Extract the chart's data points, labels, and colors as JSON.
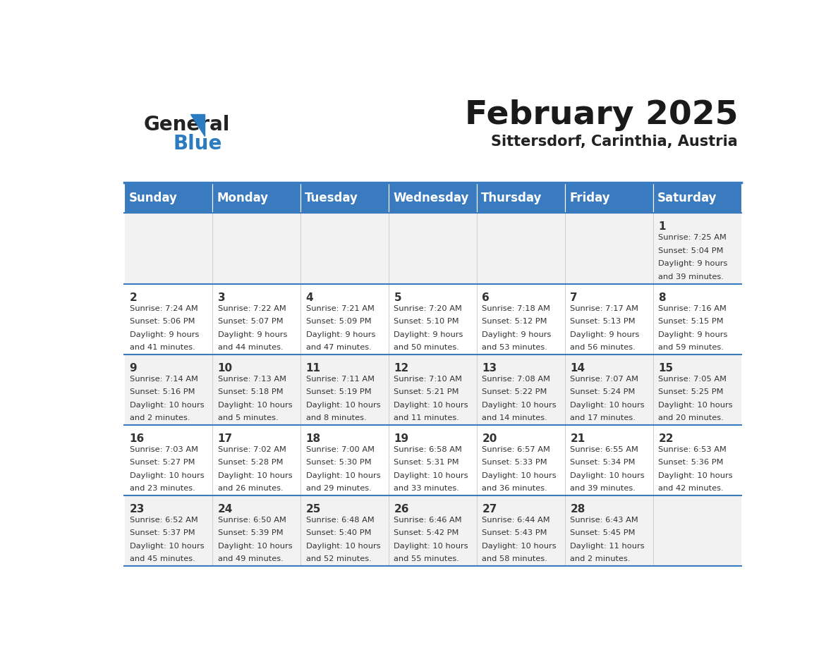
{
  "title": "February 2025",
  "subtitle": "Sittersdorf, Carinthia, Austria",
  "header_bg": "#3a7bbf",
  "header_text": "#ffffff",
  "header_days": [
    "Sunday",
    "Monday",
    "Tuesday",
    "Wednesday",
    "Thursday",
    "Friday",
    "Saturday"
  ],
  "row_bg_odd": "#f2f2f2",
  "row_bg_even": "#ffffff",
  "border_color": "#3a7bbf",
  "day_number_color": "#333333",
  "cell_text_color": "#333333",
  "days_data": [
    {
      "day": 1,
      "col": 6,
      "row": 0,
      "sunrise": "7:25 AM",
      "sunset": "5:04 PM",
      "daylight": "9 hours and 39 minutes"
    },
    {
      "day": 2,
      "col": 0,
      "row": 1,
      "sunrise": "7:24 AM",
      "sunset": "5:06 PM",
      "daylight": "9 hours and 41 minutes"
    },
    {
      "day": 3,
      "col": 1,
      "row": 1,
      "sunrise": "7:22 AM",
      "sunset": "5:07 PM",
      "daylight": "9 hours and 44 minutes"
    },
    {
      "day": 4,
      "col": 2,
      "row": 1,
      "sunrise": "7:21 AM",
      "sunset": "5:09 PM",
      "daylight": "9 hours and 47 minutes"
    },
    {
      "day": 5,
      "col": 3,
      "row": 1,
      "sunrise": "7:20 AM",
      "sunset": "5:10 PM",
      "daylight": "9 hours and 50 minutes"
    },
    {
      "day": 6,
      "col": 4,
      "row": 1,
      "sunrise": "7:18 AM",
      "sunset": "5:12 PM",
      "daylight": "9 hours and 53 minutes"
    },
    {
      "day": 7,
      "col": 5,
      "row": 1,
      "sunrise": "7:17 AM",
      "sunset": "5:13 PM",
      "daylight": "9 hours and 56 minutes"
    },
    {
      "day": 8,
      "col": 6,
      "row": 1,
      "sunrise": "7:16 AM",
      "sunset": "5:15 PM",
      "daylight": "9 hours and 59 minutes"
    },
    {
      "day": 9,
      "col": 0,
      "row": 2,
      "sunrise": "7:14 AM",
      "sunset": "5:16 PM",
      "daylight": "10 hours and 2 minutes"
    },
    {
      "day": 10,
      "col": 1,
      "row": 2,
      "sunrise": "7:13 AM",
      "sunset": "5:18 PM",
      "daylight": "10 hours and 5 minutes"
    },
    {
      "day": 11,
      "col": 2,
      "row": 2,
      "sunrise": "7:11 AM",
      "sunset": "5:19 PM",
      "daylight": "10 hours and 8 minutes"
    },
    {
      "day": 12,
      "col": 3,
      "row": 2,
      "sunrise": "7:10 AM",
      "sunset": "5:21 PM",
      "daylight": "10 hours and 11 minutes"
    },
    {
      "day": 13,
      "col": 4,
      "row": 2,
      "sunrise": "7:08 AM",
      "sunset": "5:22 PM",
      "daylight": "10 hours and 14 minutes"
    },
    {
      "day": 14,
      "col": 5,
      "row": 2,
      "sunrise": "7:07 AM",
      "sunset": "5:24 PM",
      "daylight": "10 hours and 17 minutes"
    },
    {
      "day": 15,
      "col": 6,
      "row": 2,
      "sunrise": "7:05 AM",
      "sunset": "5:25 PM",
      "daylight": "10 hours and 20 minutes"
    },
    {
      "day": 16,
      "col": 0,
      "row": 3,
      "sunrise": "7:03 AM",
      "sunset": "5:27 PM",
      "daylight": "10 hours and 23 minutes"
    },
    {
      "day": 17,
      "col": 1,
      "row": 3,
      "sunrise": "7:02 AM",
      "sunset": "5:28 PM",
      "daylight": "10 hours and 26 minutes"
    },
    {
      "day": 18,
      "col": 2,
      "row": 3,
      "sunrise": "7:00 AM",
      "sunset": "5:30 PM",
      "daylight": "10 hours and 29 minutes"
    },
    {
      "day": 19,
      "col": 3,
      "row": 3,
      "sunrise": "6:58 AM",
      "sunset": "5:31 PM",
      "daylight": "10 hours and 33 minutes"
    },
    {
      "day": 20,
      "col": 4,
      "row": 3,
      "sunrise": "6:57 AM",
      "sunset": "5:33 PM",
      "daylight": "10 hours and 36 minutes"
    },
    {
      "day": 21,
      "col": 5,
      "row": 3,
      "sunrise": "6:55 AM",
      "sunset": "5:34 PM",
      "daylight": "10 hours and 39 minutes"
    },
    {
      "day": 22,
      "col": 6,
      "row": 3,
      "sunrise": "6:53 AM",
      "sunset": "5:36 PM",
      "daylight": "10 hours and 42 minutes"
    },
    {
      "day": 23,
      "col": 0,
      "row": 4,
      "sunrise": "6:52 AM",
      "sunset": "5:37 PM",
      "daylight": "10 hours and 45 minutes"
    },
    {
      "day": 24,
      "col": 1,
      "row": 4,
      "sunrise": "6:50 AM",
      "sunset": "5:39 PM",
      "daylight": "10 hours and 49 minutes"
    },
    {
      "day": 25,
      "col": 2,
      "row": 4,
      "sunrise": "6:48 AM",
      "sunset": "5:40 PM",
      "daylight": "10 hours and 52 minutes"
    },
    {
      "day": 26,
      "col": 3,
      "row": 4,
      "sunrise": "6:46 AM",
      "sunset": "5:42 PM",
      "daylight": "10 hours and 55 minutes"
    },
    {
      "day": 27,
      "col": 4,
      "row": 4,
      "sunrise": "6:44 AM",
      "sunset": "5:43 PM",
      "daylight": "10 hours and 58 minutes"
    },
    {
      "day": 28,
      "col": 5,
      "row": 4,
      "sunrise": "6:43 AM",
      "sunset": "5:45 PM",
      "daylight": "11 hours and 2 minutes"
    }
  ],
  "num_rows": 5,
  "logo_color_general": "#222222",
  "logo_color_blue": "#2a7bbf"
}
